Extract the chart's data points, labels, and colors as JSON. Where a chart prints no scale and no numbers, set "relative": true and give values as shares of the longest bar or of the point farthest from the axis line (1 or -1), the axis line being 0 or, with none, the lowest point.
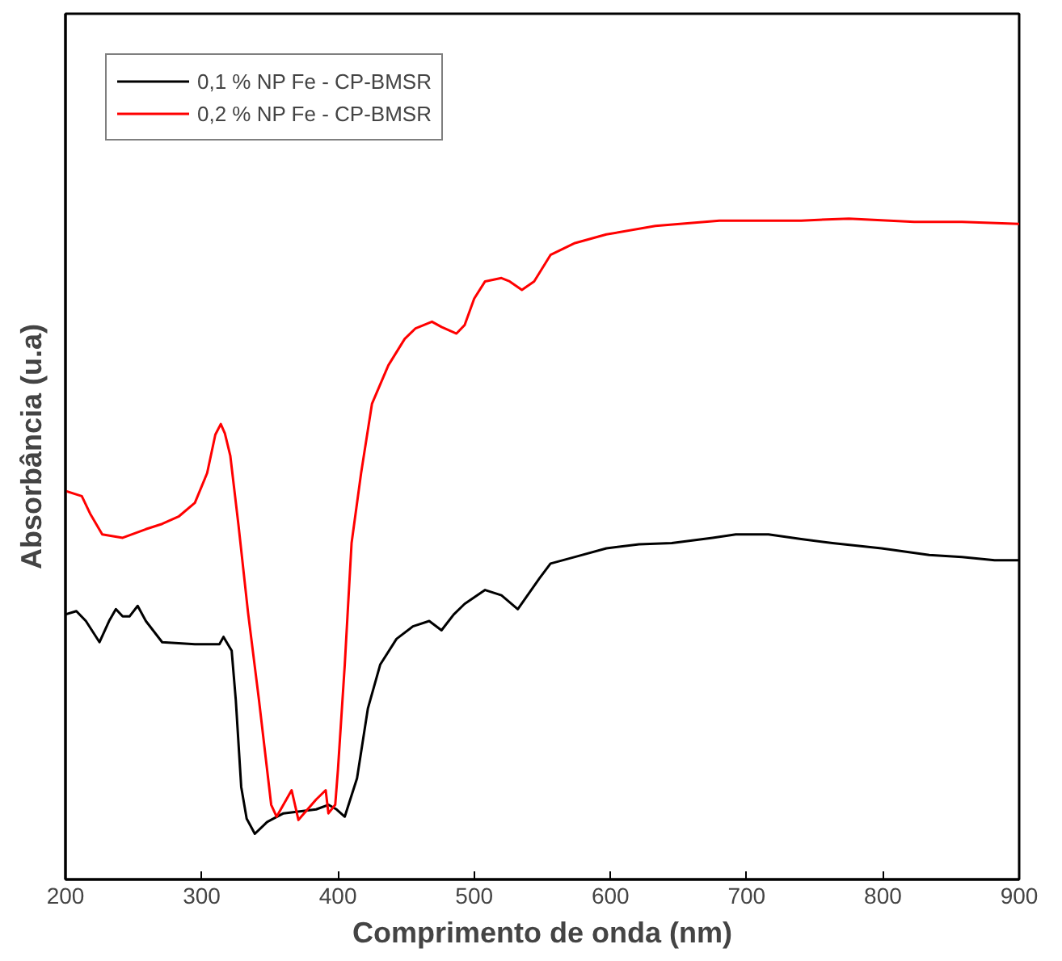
{
  "chart_data": {
    "type": "line",
    "relative": true,
    "xlabel": "Comprimento de onda (nm)",
    "ylabel": "Absorbância (u.a)",
    "xlim": [
      200,
      900
    ],
    "xticks": [
      200,
      300,
      400,
      500,
      600,
      700,
      800,
      900
    ],
    "grid": false,
    "legend": "top left",
    "tick_labels": "x",
    "line_style": "solid",
    "series": [
      {
        "name": "0,1 % NP Fe - CP-BMSR",
        "color": "#000000",
        "x": [
          200,
          208,
          215,
          225,
          232,
          237,
          242,
          247,
          253,
          259,
          271,
          295,
          313,
          316,
          322,
          325,
          329,
          333,
          339,
          348,
          360,
          384,
          393,
          399,
          405,
          414,
          422,
          431,
          443,
          455,
          467,
          476,
          485,
          493,
          508,
          520,
          532,
          548,
          556,
          574,
          597,
          621,
          645,
          675,
          692,
          716,
          740,
          763,
          799,
          834,
          858,
          882,
          900
        ],
        "values": [
          0.401,
          0.406,
          0.391,
          0.359,
          0.391,
          0.409,
          0.398,
          0.398,
          0.414,
          0.391,
          0.359,
          0.356,
          0.356,
          0.367,
          0.346,
          0.272,
          0.14,
          0.092,
          0.069,
          0.087,
          0.1,
          0.106,
          0.113,
          0.106,
          0.095,
          0.153,
          0.259,
          0.325,
          0.364,
          0.383,
          0.391,
          0.377,
          0.401,
          0.417,
          0.438,
          0.43,
          0.409,
          0.456,
          0.478,
          0.488,
          0.501,
          0.507,
          0.509,
          0.517,
          0.522,
          0.522,
          0.515,
          0.509,
          0.501,
          0.491,
          0.488,
          0.483,
          0.483
        ]
      },
      {
        "name": "0,2 % NP Fe - CP-BMSR",
        "color": "#ff0000",
        "x": [
          200,
          212,
          218,
          227,
          242,
          259,
          271,
          283,
          295,
          304,
          310,
          314,
          317,
          321,
          327,
          334,
          342,
          351,
          355,
          366,
          371,
          384,
          391,
          393,
          398,
          400,
          405,
          410,
          417,
          425,
          437,
          449,
          457,
          469,
          476,
          487,
          493,
          500,
          508,
          520,
          526,
          535,
          544,
          556,
          574,
          597,
          633,
          680,
          740,
          775,
          823,
          858,
          900
        ],
        "values": [
          0.588,
          0.58,
          0.554,
          0.522,
          0.517,
          0.53,
          0.538,
          0.549,
          0.57,
          0.615,
          0.673,
          0.689,
          0.675,
          0.641,
          0.536,
          0.404,
          0.272,
          0.113,
          0.095,
          0.135,
          0.09,
          0.121,
          0.135,
          0.1,
          0.113,
          0.166,
          0.325,
          0.509,
          0.615,
          0.72,
          0.778,
          0.818,
          0.834,
          0.844,
          0.836,
          0.826,
          0.839,
          0.879,
          0.905,
          0.91,
          0.905,
          0.892,
          0.905,
          0.945,
          0.963,
          0.976,
          0.989,
          0.997,
          0.997,
          1.0,
          0.995,
          0.995,
          0.992
        ]
      }
    ]
  }
}
